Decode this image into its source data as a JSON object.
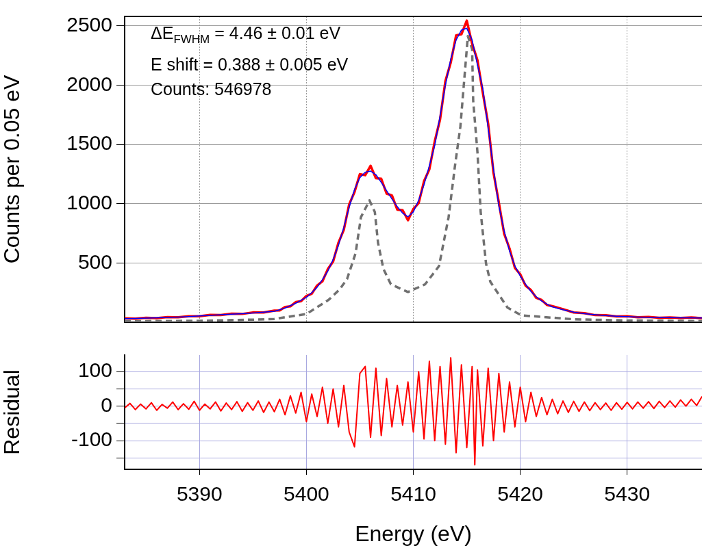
{
  "chart_data": [
    {
      "type": "line",
      "ylabel": "Counts per 0.05 eV",
      "annotations": [
        "ΔE$_{FWHM}$ = 4.46 ± 0.01 eV",
        "E shift = 0.388 ± 0.005 eV",
        "Counts: 546978"
      ],
      "x": [
        5383,
        5384,
        5385,
        5386,
        5387,
        5388,
        5389,
        5390,
        5391,
        5392,
        5393,
        5394,
        5395,
        5396,
        5397,
        5397.5,
        5398,
        5398.5,
        5399,
        5399.5,
        5400,
        5400.5,
        5401,
        5401.5,
        5402,
        5402.5,
        5403,
        5403.5,
        5404,
        5404.5,
        5405,
        5405.5,
        5406,
        5406.5,
        5407,
        5407.5,
        5408,
        5408.5,
        5409,
        5409.5,
        5410,
        5410.5,
        5411,
        5411.5,
        5412,
        5412.5,
        5413,
        5413.5,
        5414,
        5414.5,
        5415,
        5415.5,
        5416,
        5416.5,
        5417,
        5417.5,
        5418,
        5418.5,
        5419,
        5419.5,
        5420,
        5420.5,
        5421,
        5421.5,
        5422,
        5422.5,
        5423,
        5424,
        5425,
        5426,
        5427,
        5428,
        5429,
        5430,
        5431,
        5432,
        5433,
        5434,
        5435,
        5436,
        5437
      ],
      "series": [
        {
          "color": "#ff0000",
          "values": [
            33,
            30,
            37,
            35,
            43,
            42,
            51,
            50,
            62,
            60,
            72,
            70,
            83,
            82,
            98,
            100,
            128,
            134,
            170,
            178,
            222,
            240,
            310,
            345,
            448,
            512,
            672,
            780,
            995,
            1098,
            1250,
            1240,
            1320,
            1215,
            1210,
            1085,
            1070,
            950,
            945,
            860,
            955,
            1005,
            1190,
            1290,
            1525,
            1710,
            2035,
            2190,
            2420,
            2430,
            2545,
            2350,
            2210,
            1935,
            1675,
            1260,
            1010,
            745,
            622,
            458,
            405,
            308,
            272,
            205,
            188,
            146,
            136,
            110,
            82,
            76,
            60,
            59,
            49,
            50,
            42,
            45,
            38,
            41,
            36,
            40,
            35
          ]
        },
        {
          "color": "#0000ff",
          "values": [
            30,
            32,
            34,
            37,
            40,
            44,
            48,
            53,
            58,
            63,
            68,
            72,
            78,
            85,
            92,
            105,
            120,
            140,
            160,
            185,
            210,
            250,
            295,
            360,
            430,
            530,
            650,
            800,
            970,
            1120,
            1220,
            1265,
            1275,
            1245,
            1180,
            1110,
            1040,
            975,
            920,
            890,
            930,
            1030,
            1160,
            1320,
            1490,
            1740,
            2000,
            2220,
            2380,
            2465,
            2480,
            2380,
            2170,
            1970,
            1640,
            1290,
            980,
            770,
            600,
            475,
            390,
            320,
            260,
            215,
            180,
            152,
            130,
            105,
            85,
            72,
            63,
            56,
            51,
            47,
            44,
            42,
            40,
            39,
            38,
            37,
            36
          ]
        },
        {
          "type": "line",
          "color": "#707070",
          "line_style": "dashed",
          "x": [
            5383,
            5390,
            5395,
            5397,
            5400,
            5402.1,
            5403.1,
            5403.8,
            5404.6,
            5405.1,
            5405.6,
            5405.9,
            5406.4,
            5406.7,
            5407.2,
            5407.9,
            5409.5,
            5411.1,
            5412.4,
            5413.3,
            5413.9,
            5414.4,
            5414.7,
            5415.1,
            5415.5,
            5415.6,
            5416,
            5416.3,
            5416.8,
            5417.2,
            5418.8,
            5420.1,
            5425,
            5430,
            5437
          ],
          "values": [
            8,
            12,
            22,
            28,
            69,
            190,
            276,
            364,
            582,
            887,
            974,
            1028,
            930,
            669,
            451,
            320,
            255,
            320,
            473,
            887,
            1322,
            1650,
            1977,
            2414,
            2305,
            1868,
            1432,
            930,
            495,
            342,
            124,
            58,
            25,
            15,
            10
          ]
        }
      ],
      "xlim": [
        5383,
        5437
      ],
      "xticks": [
        5390,
        5400,
        5410,
        5420,
        5430
      ],
      "ylim": [
        0,
        2580
      ],
      "yticks": [
        500,
        1000,
        1500,
        2000,
        2500
      ],
      "grid": true,
      "tick_labels": "y",
      "marker": "none",
      "line_style": "solid"
    },
    {
      "type": "line",
      "xlabel": "Energy (eV)",
      "ylabel": "Residual",
      "color": "#ff0000",
      "x": [
        5383,
        5383.5,
        5384,
        5384.5,
        5385,
        5385.5,
        5386,
        5386.5,
        5387,
        5387.5,
        5388,
        5388.5,
        5389,
        5389.5,
        5390,
        5390.5,
        5391,
        5391.5,
        5392,
        5392.5,
        5393,
        5393.5,
        5394,
        5394.5,
        5395,
        5395.5,
        5396,
        5396.5,
        5397,
        5397.5,
        5398,
        5398.5,
        5399,
        5399.5,
        5400,
        5400.5,
        5401,
        5401.5,
        5402,
        5402.5,
        5403,
        5403.5,
        5404,
        5404.5,
        5405,
        5405.5,
        5406,
        5406.5,
        5407,
        5407.5,
        5408,
        5408.5,
        5409,
        5409.5,
        5410,
        5410.5,
        5411,
        5411.5,
        5412,
        5412.5,
        5413,
        5413.5,
        5414,
        5414.5,
        5415,
        5415.5,
        5415.75,
        5416,
        5416.5,
        5417,
        5417.5,
        5418,
        5418.5,
        5419,
        5419.5,
        5420,
        5420.5,
        5421,
        5421.5,
        5422,
        5422.5,
        5423,
        5423.5,
        5424,
        5424.5,
        5425,
        5425.5,
        5426,
        5426.5,
        5427,
        5427.5,
        5428,
        5428.5,
        5429,
        5429.5,
        5430,
        5430.5,
        5431,
        5431.5,
        5432,
        5432.5,
        5433,
        5433.5,
        5434,
        5434.5,
        5435,
        5435.5,
        5436,
        5436.5,
        5437
      ],
      "values": [
        -5,
        8,
        -10,
        6,
        -8,
        10,
        -12,
        5,
        -6,
        12,
        -10,
        7,
        -9,
        14,
        -12,
        6,
        -8,
        12,
        -14,
        9,
        -10,
        13,
        -15,
        10,
        -12,
        15,
        -18,
        12,
        -16,
        20,
        -25,
        30,
        -20,
        40,
        -45,
        35,
        -30,
        55,
        -50,
        50,
        -60,
        60,
        -75,
        -118,
        95,
        115,
        -90,
        110,
        -85,
        80,
        -60,
        60,
        -55,
        70,
        -75,
        100,
        -95,
        130,
        -100,
        115,
        -110,
        140,
        -135,
        120,
        -120,
        115,
        -170,
        105,
        -115,
        110,
        -100,
        95,
        -75,
        70,
        -60,
        55,
        -45,
        40,
        -30,
        25,
        -25,
        20,
        -22,
        15,
        -18,
        14,
        -15,
        12,
        -13,
        10,
        -10,
        9,
        -12,
        10,
        -9,
        11,
        -8,
        12,
        -6,
        13,
        -7,
        14,
        -4,
        15,
        -3,
        18,
        0,
        20,
        2,
        28
      ],
      "xlim": [
        5383,
        5437
      ],
      "xticks": [
        5390,
        5400,
        5410,
        5420,
        5430
      ],
      "ylim": [
        -183,
        148
      ],
      "yticks": [
        100,
        {
          "value": 50,
          "label": null
        },
        0,
        {
          "value": -50,
          "label": null
        },
        -100,
        {
          "value": -150,
          "label": null
        }
      ],
      "grid": true,
      "marker": "none",
      "line_style": "solid"
    }
  ]
}
